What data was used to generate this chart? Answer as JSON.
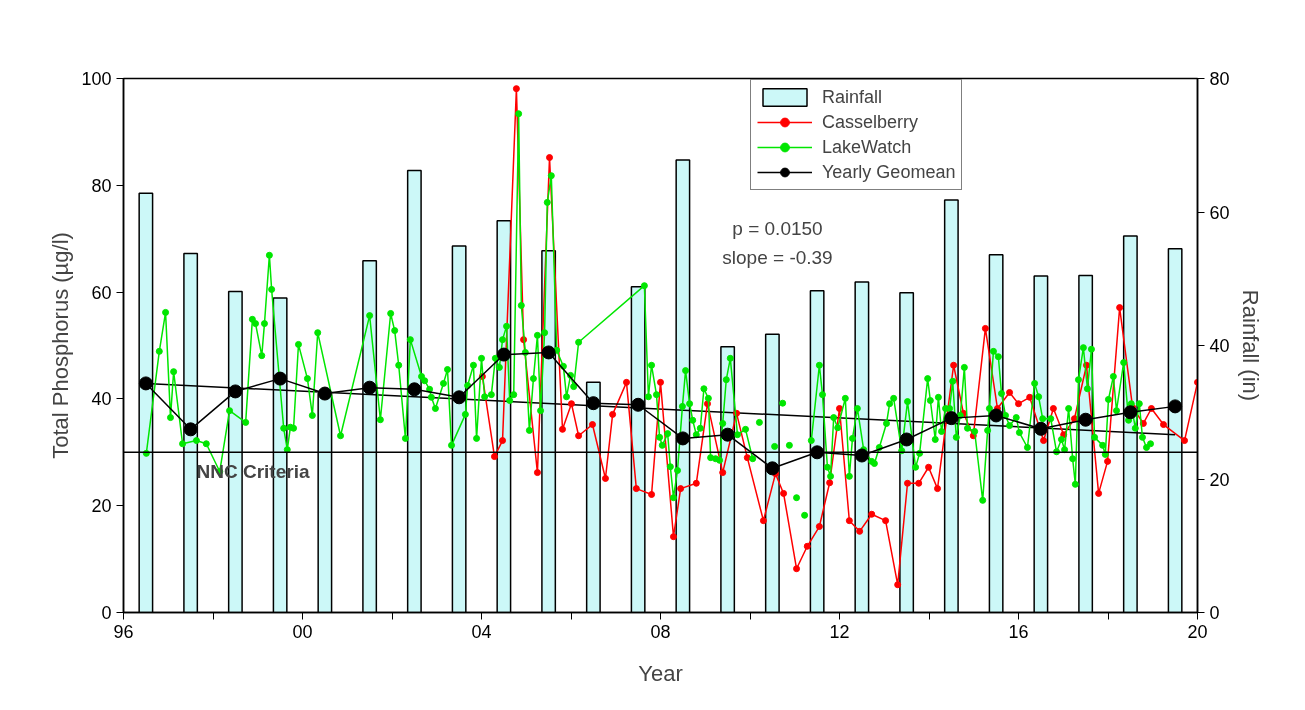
{
  "chart_data": {
    "type": "line",
    "xlabel": "Year",
    "ylabel": "Total Phosphorus (µg/l)",
    "y2label": "Rainfall (in)",
    "xlim": [
      1996,
      2020
    ],
    "xticks": [
      {
        "value": 1996,
        "label": "96"
      },
      {
        "value": 1998,
        "label": null
      },
      {
        "value": 2000,
        "label": "00"
      },
      {
        "value": 2002,
        "label": null
      },
      {
        "value": 2004,
        "label": "04"
      },
      {
        "value": 2006,
        "label": null
      },
      {
        "value": 2008,
        "label": "08"
      },
      {
        "value": 2010,
        "label": null
      },
      {
        "value": 2012,
        "label": "12"
      },
      {
        "value": 2014,
        "label": null
      },
      {
        "value": 2016,
        "label": "16"
      },
      {
        "value": 2018,
        "label": null
      },
      {
        "value": 2020,
        "label": "20"
      }
    ],
    "ylim": [
      0,
      100
    ],
    "yticks": [
      0,
      20,
      40,
      60,
      80,
      100
    ],
    "y2lim": [
      0,
      80
    ],
    "y2ticks": [
      0,
      20,
      40,
      60,
      80
    ],
    "x": [
      1996.5,
      1997.5,
      1998.5,
      1999.5,
      2000.5,
      2001.5,
      2002.5,
      2003.5,
      2004.5,
      2005.5,
      2006.5,
      2007.5,
      2008.5,
      2009.5,
      2010.5,
      2011.5,
      2012.5,
      2013.5,
      2014.5,
      2015.5,
      2016.5,
      2017.5,
      2018.5,
      2019.5
    ],
    "series": [
      {
        "name": "Rainfall",
        "type": "bar",
        "axis": "y2",
        "color": "#ccf8f8",
        "values": [
          62.8,
          53.8,
          48.1,
          47.1,
          32.8,
          52.7,
          66.2,
          54.9,
          58.7,
          54.2,
          34.5,
          48.8,
          67.8,
          39.8,
          41.7,
          48.2,
          49.5,
          47.9,
          61.8,
          53.6,
          50.4,
          50.5,
          56.4,
          54.5
        ]
      },
      {
        "color": "#000000",
        "x": [
          1996.5,
          2019.5
        ],
        "values": [
          42.9,
          33.3
        ]
      },
      {
        "name": "Casselberry",
        "marker": "circle",
        "color": "#ff0000",
        "x": [
          2004.02,
          2004.29,
          2004.47,
          2004.78,
          2004.94,
          2005.25,
          2005.52,
          2005.81,
          2006.01,
          2006.17,
          2006.48,
          2006.77,
          2006.93,
          2007.24,
          2007.46,
          2007.8,
          2008.0,
          2008.29,
          2008.45,
          2008.8,
          2009.05,
          2009.39,
          2009.7,
          2009.94,
          2010.3,
          2010.57,
          2010.75,
          2011.04,
          2011.28,
          2011.55,
          2011.78,
          2012.0,
          2012.22,
          2012.45,
          2012.72,
          2013.03,
          2013.3,
          2013.52,
          2013.77,
          2013.99,
          2014.19,
          2014.55,
          2014.77,
          2014.99,
          2015.26,
          2015.53,
          2015.8,
          2016.0,
          2016.25,
          2016.56,
          2016.78,
          2017.01,
          2017.25,
          2017.52,
          2017.79,
          2017.99,
          2018.26,
          2018.55,
          2018.79,
          2018.97,
          2019.24,
          2019.71,
          2020.0
        ],
        "values": [
          44.2,
          29.2,
          32.2,
          98.1,
          51.1,
          26.2,
          85.2,
          34.3,
          39.1,
          33.1,
          35.2,
          25.1,
          37.1,
          43.1,
          23.2,
          22.1,
          43.1,
          14.2,
          23.2,
          24.2,
          39.1,
          26.2,
          37.3,
          29.0,
          17.2,
          26.0,
          22.3,
          8.2,
          12.4,
          16.1,
          24.3,
          38.2,
          17.2,
          15.2,
          18.4,
          17.2,
          5.2,
          24.2,
          24.2,
          27.2,
          23.2,
          46.3,
          37.3,
          33.1,
          53.2,
          38.2,
          41.2,
          39.1,
          40.3,
          32.2,
          38.2,
          33.3,
          36.3,
          46.3,
          22.3,
          28.3,
          57.1,
          38.4,
          35.4,
          38.2,
          35.2,
          32.2,
          43.1
        ]
      },
      {
        "name": "LakeWatch",
        "marker": "circle",
        "color": "#00e600",
        "x": [
          1996.51,
          1996.8,
          1996.94,
          1997.05,
          1997.12,
          1997.32,
          1997.63,
          1997.85,
          1998.15,
          1998.37,
          1998.73,
          1998.88,
          1998.95,
          1999.09,
          1999.15,
          1999.26,
          1999.31,
          1999.58,
          1999.66,
          1999.73,
          1999.8,
          1999.91,
          2000.11,
          2000.22,
          2000.34,
          2000.85,
          2001.5,
          2001.74,
          2001.97,
          2002.06,
          2002.15,
          2002.3,
          2002.41,
          2002.66,
          2002.73,
          2002.84,
          2002.88,
          2002.97,
          2003.15,
          2003.24,
          2003.33,
          2003.64,
          2003.69,
          2003.82,
          2003.89,
          2004.0,
          2004.07,
          2004.22,
          2004.31,
          2004.4,
          2004.47,
          2004.56,
          2004.63,
          2004.72,
          2004.83,
          2004.89,
          2004.98,
          2005.07,
          2005.16,
          2005.25,
          2005.32,
          2005.41,
          2005.47,
          2005.56,
          2005.68,
          2005.83,
          2005.9,
          2005.99,
          2006.06,
          2006.17,
          2007.64,
          2007.73,
          2007.8,
          2007.91,
          2007.98,
          2008.04,
          2008.16,
          2008.22,
          2008.29,
          2008.38,
          2008.49,
          2008.56,
          2008.65,
          2008.72,
          2008.8,
          2008.89,
          2008.97,
          2009.07,
          2009.12,
          2009.23,
          2009.32,
          2009.39,
          2009.47,
          2009.56,
          2009.72,
          2009.9,
          2010.06,
          2010.14,
          2010.21,
          2010.38,
          2010.55,
          2010.64,
          2010.73,
          2010.8,
          2010.88,
          2010.96,
          2011.04,
          2011.13,
          2011.22,
          2011.3,
          2011.37,
          2011.55,
          2011.62,
          2011.73,
          2011.8,
          2011.87,
          2011.96,
          2012.13,
          2012.22,
          2012.29,
          2012.4,
          2012.54,
          2012.72,
          2012.78,
          2012.89,
          2013.05,
          2013.12,
          2013.21,
          2013.39,
          2013.52,
          2013.7,
          2013.79,
          2013.97,
          2014.03,
          2014.14,
          2014.21,
          2014.28,
          2014.37,
          2014.46,
          2014.53,
          2014.61,
          2014.7,
          2014.79,
          2014.86,
          2015.02,
          2015.2,
          2015.31,
          2015.35,
          2015.44,
          2015.55,
          2015.62,
          2015.71,
          2015.8,
          2015.95,
          2016.02,
          2016.2,
          2016.36,
          2016.45,
          2016.54,
          2016.72,
          2016.85,
          2016.96,
          2017.03,
          2017.12,
          2017.21,
          2017.27,
          2017.34,
          2017.45,
          2017.54,
          2017.63,
          2017.7,
          2017.88,
          2017.94,
          2018.01,
          2018.12,
          2018.19,
          2018.35,
          2018.46,
          2018.52,
          2018.61,
          2018.7,
          2018.77,
          2018.86,
          2018.95
        ],
        "values": [
          29.8,
          48.9,
          56.2,
          36.5,
          45.1,
          31.6,
          32.2,
          31.6,
          26.4,
          37.8,
          35.6,
          54.9,
          54.1,
          48.1,
          54.1,
          66.9,
          60.5,
          34.5,
          30.5,
          34.7,
          34.5,
          50.2,
          43.8,
          36.9,
          52.4,
          33.1,
          55.6,
          36.1,
          56.0,
          52.8,
          46.3,
          32.6,
          51.1,
          44.2,
          43.4,
          41.8,
          40.3,
          38.2,
          42.9,
          45.5,
          31.3,
          37.1,
          42.5,
          46.3,
          32.6,
          47.6,
          40.4,
          40.8,
          47.6,
          45.9,
          51.1,
          53.6,
          39.7,
          40.8,
          93.4,
          57.5,
          48.7,
          34.1,
          43.8,
          51.9,
          37.8,
          52.4,
          76.8,
          81.8,
          49.1,
          46.1,
          40.4,
          44.4,
          42.3,
          50.6,
          61.2,
          40.4,
          46.3,
          40.8,
          32.8,
          31.3,
          33.5,
          27.3,
          21.5,
          26.6,
          38.6,
          45.3,
          39.1,
          36.0,
          33.3,
          34.5,
          41.9,
          40.1,
          29.0,
          28.8,
          28.5,
          35.4,
          43.6,
          47.6,
          33.3,
          34.3,
          28.8,
          null,
          35.6,
          null,
          31.1,
          null,
          39.2,
          null,
          31.3,
          null,
          21.5,
          null,
          18.2,
          null,
          32.2,
          46.3,
          40.8,
          27.2,
          25.5,
          36.5,
          34.6,
          40.1,
          25.5,
          32.6,
          38.2,
          30.5,
          28.3,
          27.9,
          30.9,
          35.4,
          39.1,
          40.1,
          30.3,
          39.5,
          27.2,
          29.8,
          43.8,
          39.7,
          32.4,
          40.3,
          33.9,
          38.2,
          38.2,
          43.3,
          32.8,
          36.9,
          45.9,
          34.5,
          33.9,
          21.0,
          34.1,
          38.2,
          48.9,
          47.9,
          41.0,
          36.9,
          35.0,
          36.5,
          33.7,
          30.9,
          42.9,
          40.4,
          36.3,
          36.3,
          30.1,
          32.4,
          30.5,
          38.2,
          28.8,
          24.0,
          43.6,
          49.6,
          41.9,
          49.3,
          32.8,
          31.3,
          29.6,
          39.9,
          44.2,
          37.8,
          46.8,
          36.0,
          39.1,
          34.5,
          39.1,
          32.8,
          30.9,
          31.6
        ]
      },
      {
        "name": "Yearly Geomean",
        "marker": "circle",
        "color": "#000000",
        "values": [
          42.9,
          34.3,
          41.4,
          43.8,
          41.0,
          42.1,
          41.8,
          40.3,
          48.3,
          48.7,
          39.2,
          38.9,
          32.6,
          33.3,
          27.0,
          30.0,
          29.4,
          32.4,
          36.4,
          36.9,
          34.4,
          36.1,
          37.5,
          38.6
        ]
      }
    ],
    "ref_lines": [
      {
        "axis": "y",
        "value": 30,
        "label": "NNC Criteria",
        "color": "#000000"
      }
    ],
    "annotations": [
      "p = 0.0150",
      "slope = -0.39"
    ],
    "legend": "top right"
  }
}
